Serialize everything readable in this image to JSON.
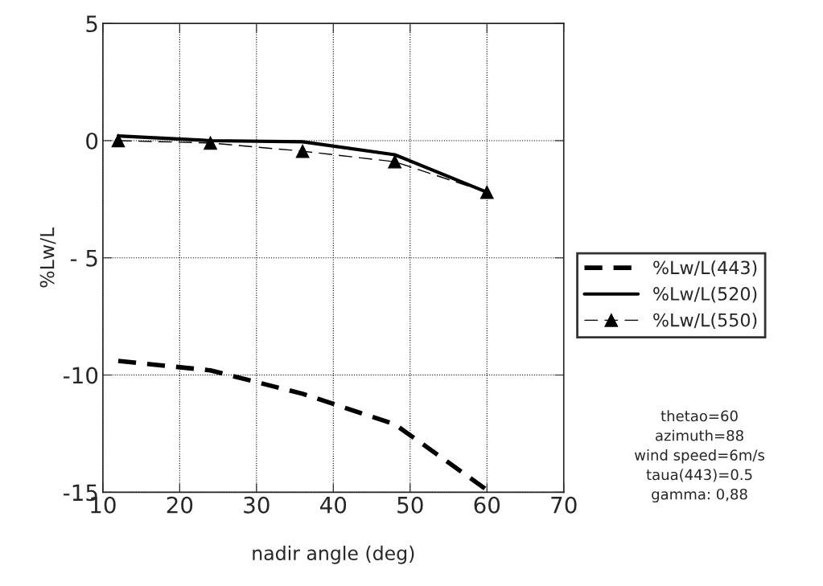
{
  "chart_data": {
    "type": "line",
    "xlabel": "nadir angle (deg)",
    "ylabel": "%Lw/L",
    "x": [
      12,
      24,
      36,
      48,
      60
    ],
    "series": [
      {
        "name": "%Lw/L(443)",
        "color": "#000000",
        "values": [
          -9.4,
          -9.8,
          -10.8,
          -12.1,
          -14.9
        ],
        "line_style": "dashed",
        "marker": "none"
      },
      {
        "name": "%Lw/L(520)",
        "color": "#000000",
        "values": [
          0.2,
          0.0,
          -0.05,
          -0.6,
          -2.2
        ],
        "line_style": "solid",
        "marker": "none"
      },
      {
        "name": "%Lw/L(550)",
        "color": "#000000",
        "values": [
          0.0,
          -0.1,
          -0.45,
          -0.9,
          -2.2
        ],
        "line_style": "dashed",
        "marker": "triangle"
      }
    ],
    "xlim": [
      10,
      70
    ],
    "xticks": [
      10,
      20,
      30,
      40,
      50,
      60,
      70
    ],
    "ylim": [
      -15,
      5
    ],
    "yticks": [
      5,
      0,
      {
        "value": -5,
        "label": "- 5"
      },
      {
        "value": -10,
        "label": "-10"
      },
      {
        "value": -15,
        "label": "-15"
      }
    ],
    "grid": true,
    "legend": "right",
    "annotations": [
      "thetao=60\nazimuth=88\nwind speed=6m/s\ntaua(443)=0.5\ngamma: 0,88"
    ]
  }
}
